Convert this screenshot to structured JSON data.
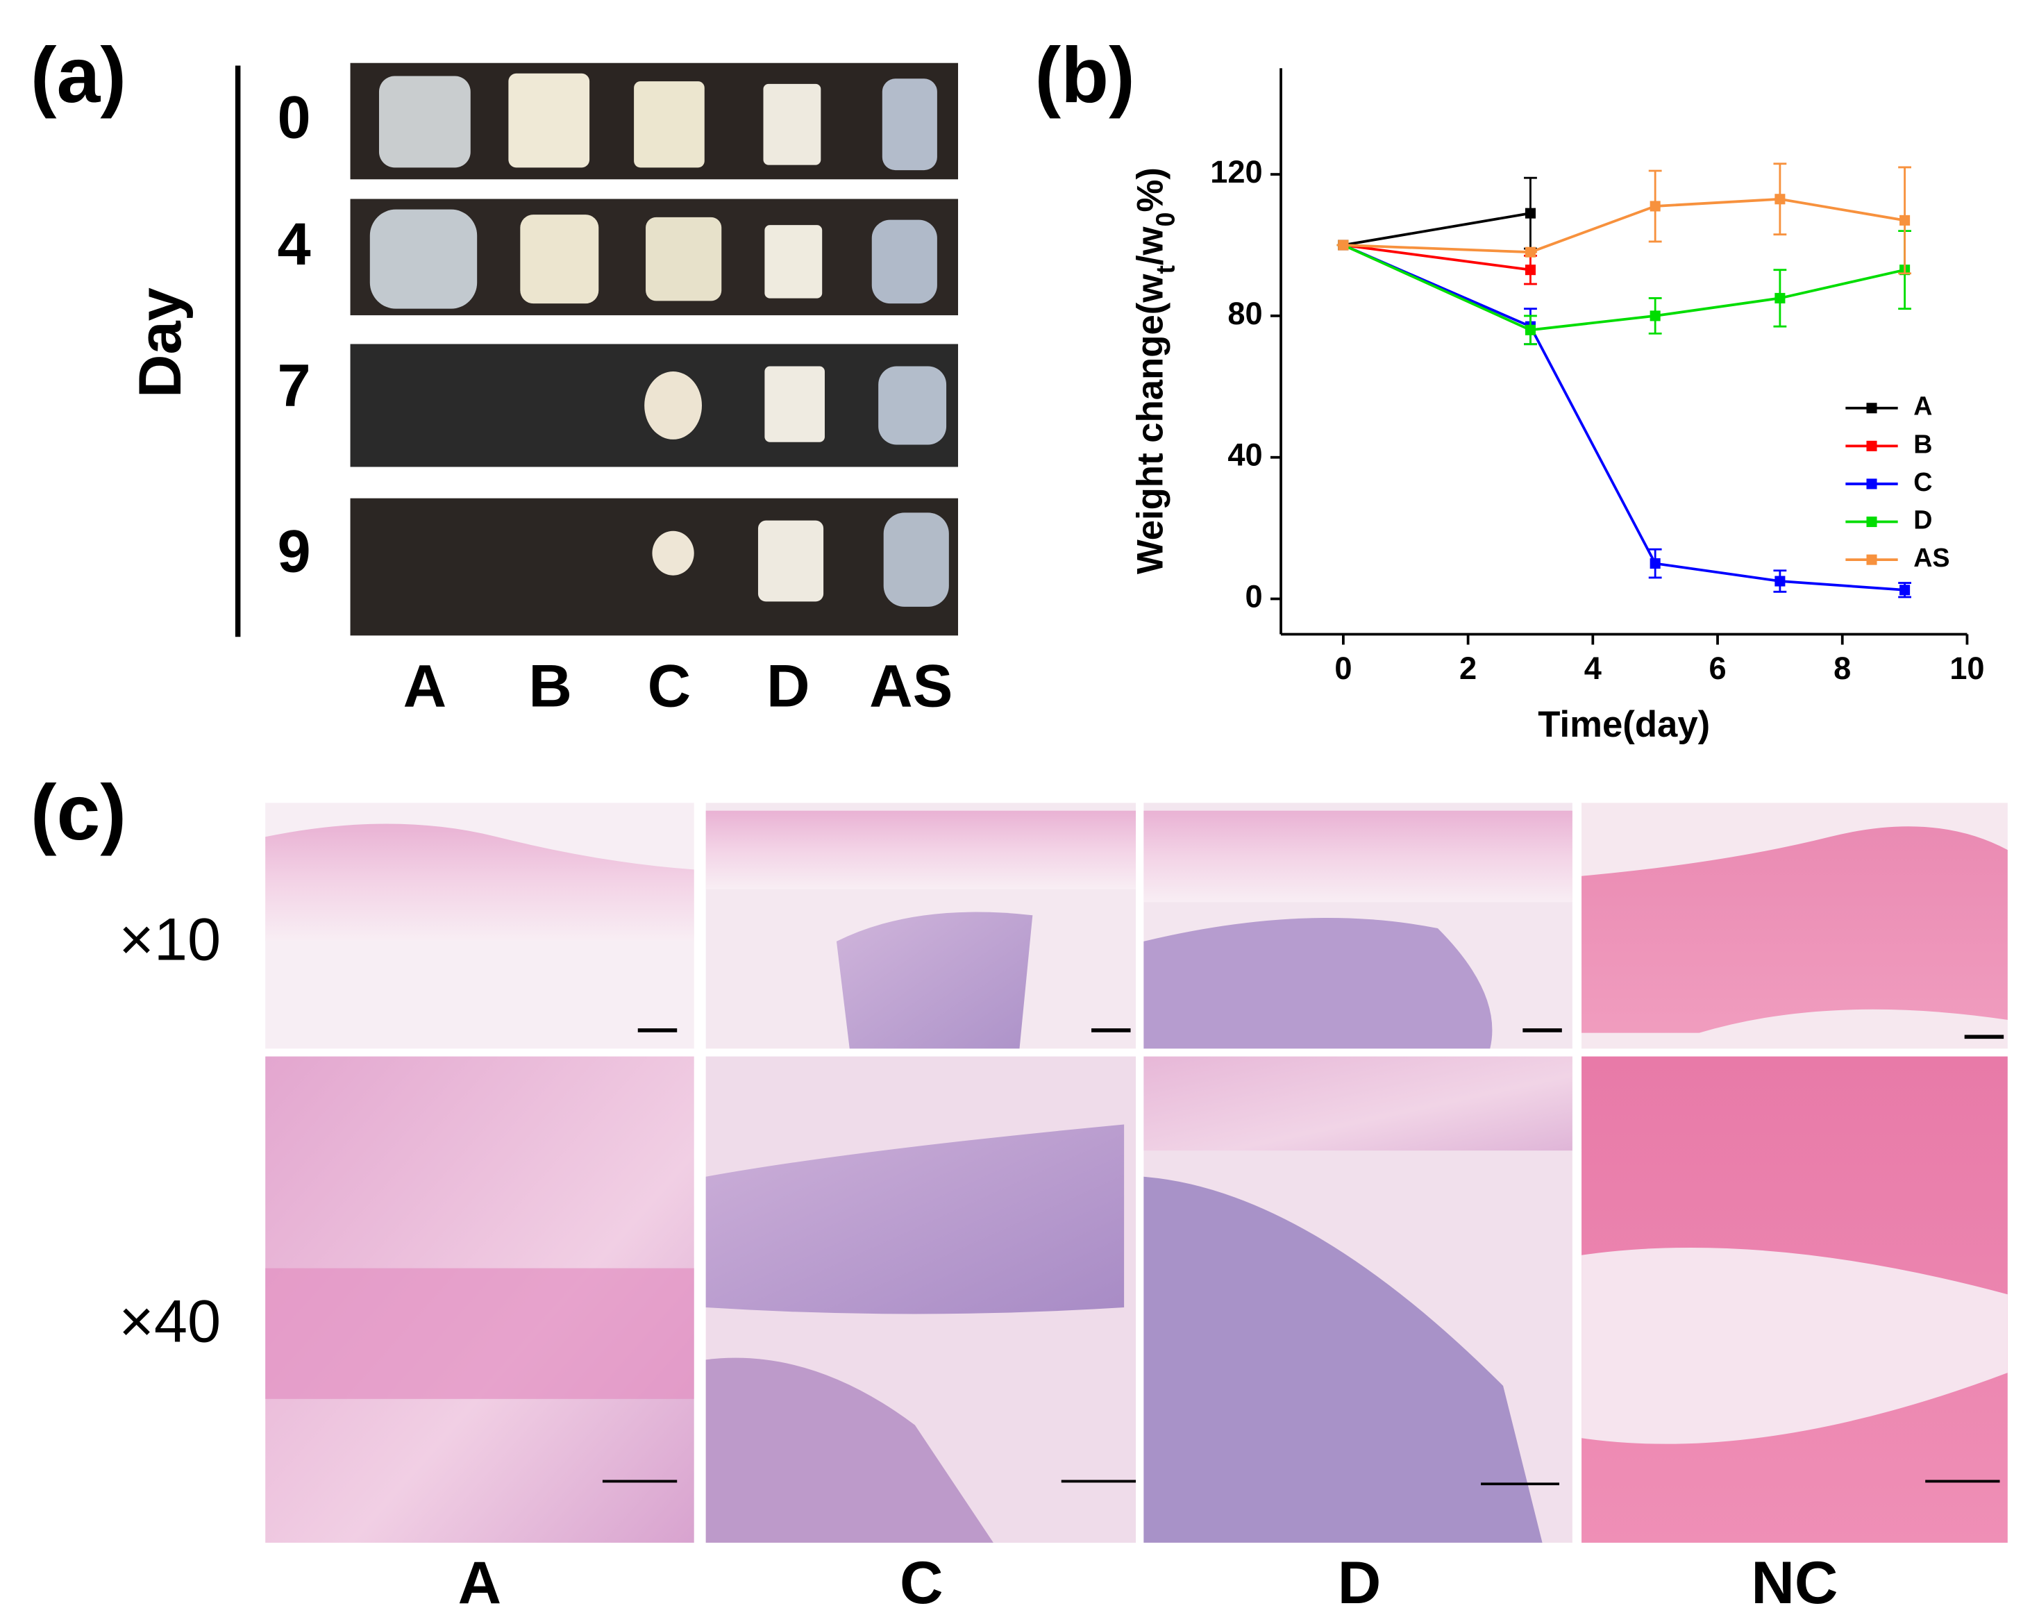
{
  "panel_a": {
    "label": "(a)",
    "axis_title": "Day",
    "days": [
      "0",
      "4",
      "7",
      "9"
    ],
    "groups": [
      "A",
      "B",
      "C",
      "D",
      "AS"
    ]
  },
  "chart_data": {
    "type": "line",
    "panel_label": "(b)",
    "xlabel": "Time(day)",
    "ylabel_parts": [
      "Weight change(w",
      "t",
      "/w",
      "0",
      "%)"
    ],
    "xlim": [
      -1,
      10
    ],
    "ylim": [
      -10,
      150
    ],
    "xticks": [
      0,
      2,
      4,
      6,
      8,
      10
    ],
    "yticks": [
      0,
      40,
      80,
      120
    ],
    "legend": "center right",
    "series": [
      {
        "name": "A",
        "color": "#000000",
        "x": [
          0,
          3
        ],
        "values": [
          100,
          109
        ],
        "errors": [
          0,
          10
        ]
      },
      {
        "name": "B",
        "color": "#ff0000",
        "x": [
          0,
          3
        ],
        "values": [
          100,
          93
        ],
        "errors": [
          0,
          4
        ]
      },
      {
        "name": "C",
        "color": "#0000ff",
        "x": [
          0,
          3,
          5,
          7,
          9
        ],
        "values": [
          100,
          77,
          10,
          5,
          2.5
        ],
        "errors": [
          0,
          5,
          4,
          3,
          2
        ]
      },
      {
        "name": "D",
        "color": "#00dd00",
        "x": [
          0,
          3,
          5,
          7,
          9
        ],
        "values": [
          100,
          76,
          80,
          85,
          93
        ],
        "errors": [
          0,
          4,
          5,
          8,
          11
        ]
      },
      {
        "name": "AS",
        "color": "#f7913d",
        "x": [
          0,
          3,
          5,
          7,
          9
        ],
        "values": [
          100,
          98,
          111,
          113,
          107
        ],
        "errors": [
          0,
          0,
          10,
          10,
          15
        ]
      }
    ]
  },
  "panel_c": {
    "label": "(c)",
    "magnifications": [
      "×10",
      "×40"
    ],
    "groups": [
      "A",
      "C",
      "D",
      "NC"
    ]
  }
}
